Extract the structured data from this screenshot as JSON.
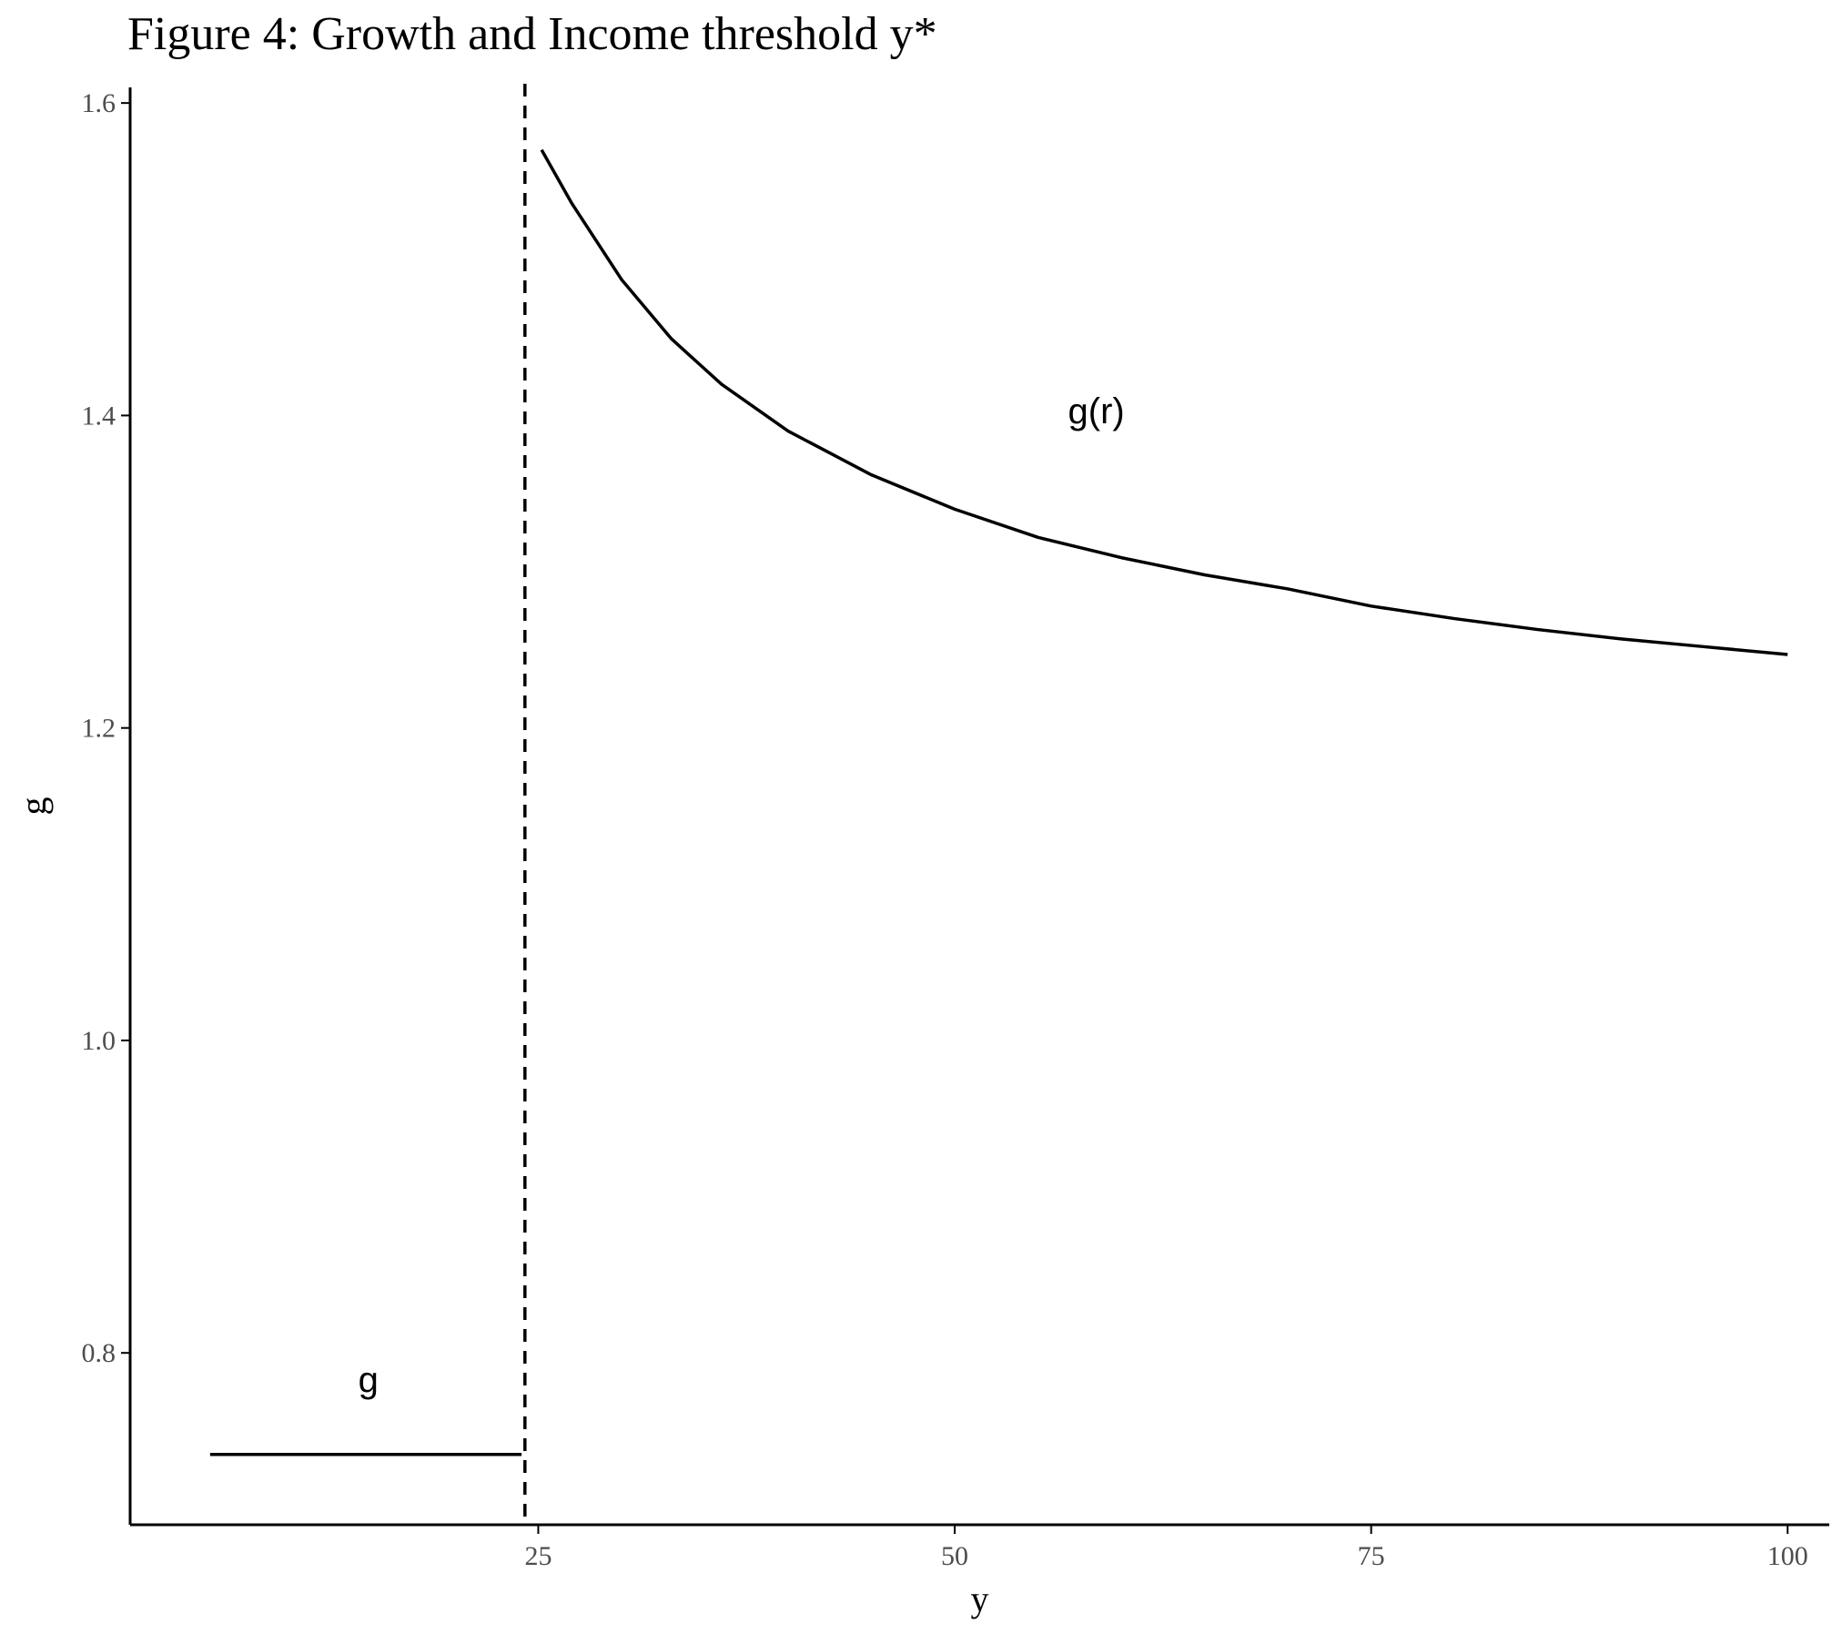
{
  "chart_data": {
    "type": "line",
    "title": "Figure 4: Growth and Income threshold y*",
    "xlabel": "y",
    "ylabel": "g",
    "xlim": [
      0.5,
      102.5
    ],
    "ylim": [
      0.69,
      1.61
    ],
    "x_ticks": [
      25,
      50,
      75,
      100
    ],
    "x_tick_labels": [
      "25",
      "50",
      "75",
      "100"
    ],
    "y_ticks": [
      0.8,
      1.0,
      1.2,
      1.4,
      1.6
    ],
    "y_tick_labels": [
      "0.8",
      "1.0",
      "1.2",
      "1.4",
      "1.6"
    ],
    "threshold_line": {
      "x": 24.2,
      "style": "dashed"
    },
    "series": [
      {
        "segment": "below threshold",
        "x": [
          5.3,
          24.0
        ],
        "y": [
          0.735,
          0.735
        ]
      },
      {
        "segment": "above threshold",
        "x": [
          25.2,
          27,
          30,
          33,
          36,
          40,
          45,
          50,
          55,
          60,
          65,
          70,
          75,
          80,
          85,
          90,
          95,
          100
        ],
        "y": [
          1.57,
          1.536,
          1.487,
          1.449,
          1.42,
          1.39,
          1.362,
          1.34,
          1.322,
          1.309,
          1.298,
          1.289,
          1.278,
          1.27,
          1.263,
          1.257,
          1.252,
          1.247
        ]
      }
    ],
    "annotations": [
      {
        "text": "g(r)",
        "x": 58.5,
        "y": 1.395
      },
      {
        "text": "g",
        "x": 14.8,
        "y": 0.775,
        "underline": true
      }
    ],
    "grid": false,
    "legend": "none"
  }
}
